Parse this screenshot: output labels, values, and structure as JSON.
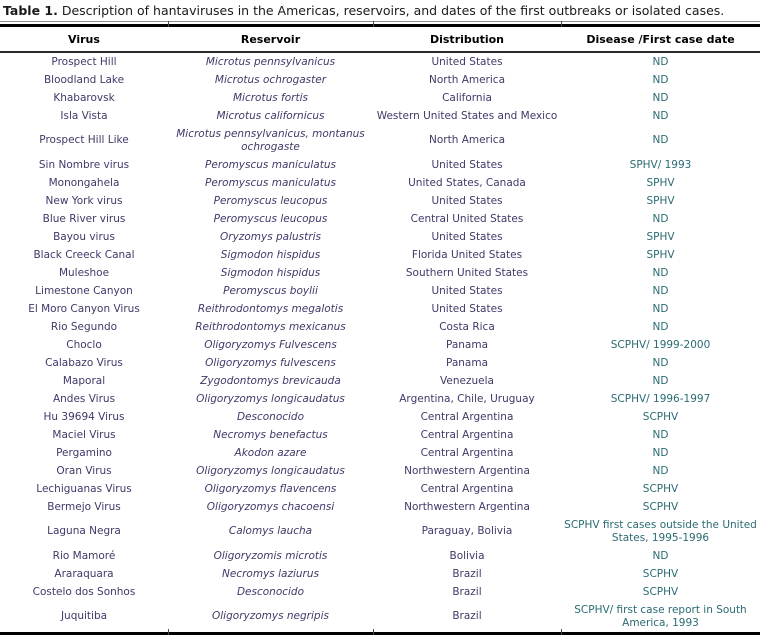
{
  "caption": {
    "label": "Table 1.",
    "text": " Description of hantaviruses in the Americas, reservoirs, and dates of the first outbreaks or isolated cases."
  },
  "table": {
    "columns": [
      "Virus",
      "Reservoir",
      "Distribution",
      "Disease /First case date"
    ],
    "rows": [
      {
        "virus": "Prospect Hill",
        "reservoir": "Microtus pennsylvanicus",
        "distribution": "United States",
        "disease": "ND"
      },
      {
        "virus": "Bloodland Lake",
        "reservoir": "Microtus ochrogaster",
        "distribution": "North America",
        "disease": "ND"
      },
      {
        "virus": "Khabarovsk",
        "reservoir": "Microtus fortis",
        "distribution": "California",
        "disease": "ND"
      },
      {
        "virus": "Isla Vista",
        "reservoir": "Microtus californicus",
        "distribution": "Western United States and Mexico",
        "disease": "ND"
      },
      {
        "virus": "Prospect Hill Like",
        "reservoir": "Microtus pennsylvanicus, montanus ochrogaste",
        "distribution": "North America",
        "disease": "ND"
      },
      {
        "virus": "Sin Nombre virus",
        "reservoir": "Peromyscus maniculatus",
        "distribution": "United States",
        "disease": "SPHV/ 1993"
      },
      {
        "virus": "Monongahela",
        "reservoir": "Peromyscus maniculatus",
        "distribution": "United States, Canada",
        "disease": "SPHV"
      },
      {
        "virus": "New York virus",
        "reservoir": "Peromyscus leucopus",
        "distribution": "United States",
        "disease": "SPHV"
      },
      {
        "virus": "Blue River virus",
        "reservoir": "Peromyscus leucopus",
        "distribution": "Central United States",
        "disease": "ND"
      },
      {
        "virus": "Bayou virus",
        "reservoir": "Oryzomys palustris",
        "distribution": "United States",
        "disease": "SPHV"
      },
      {
        "virus": "Black Creeck Canal",
        "reservoir": "Sigmodon hispidus",
        "distribution": "Florida United States",
        "disease": "SPHV"
      },
      {
        "virus": "Muleshoe",
        "reservoir": "Sigmodon hispidus",
        "distribution": "Southern United States",
        "disease": "ND"
      },
      {
        "virus": "Limestone Canyon",
        "reservoir": "Peromyscus boylii",
        "distribution": "United States",
        "disease": "ND"
      },
      {
        "virus": "El Moro Canyon Virus",
        "reservoir": "Reithrodontomys megalotis",
        "distribution": "United States",
        "disease": "ND"
      },
      {
        "virus": "Rio Segundo",
        "reservoir": "Reithrodontomys mexicanus",
        "distribution": "Costa Rica",
        "disease": "ND"
      },
      {
        "virus": "Choclo",
        "reservoir": "Oligoryzomys Fulvescens",
        "distribution": "Panama",
        "disease": "SCPHV/ 1999-2000"
      },
      {
        "virus": "Calabazo Virus",
        "reservoir": "Oligoryzomys fulvescens",
        "distribution": "Panama",
        "disease": "ND"
      },
      {
        "virus": "Maporal",
        "reservoir": "Zygodontomys brevicauda",
        "distribution": "Venezuela",
        "disease": "ND"
      },
      {
        "virus": "Andes Virus",
        "reservoir": "Oligoryzomys longicaudatus",
        "distribution": "Argentina, Chile, Uruguay",
        "disease": "SCPHV/ 1996-1997"
      },
      {
        "virus": "Hu 39694 Virus",
        "reservoir": "Desconocido",
        "distribution": "Central Argentina",
        "disease": "SCPHV"
      },
      {
        "virus": "Maciel Virus",
        "reservoir": "Necromys benefactus",
        "distribution": "Central Argentina",
        "disease": "ND"
      },
      {
        "virus": "Pergamino",
        "reservoir": "Akodon azare",
        "distribution": "Central Argentina",
        "disease": "ND"
      },
      {
        "virus": "Oran Virus",
        "reservoir": "Oligoryzomys longicaudatus",
        "distribution": "Northwestern Argentina",
        "disease": "ND"
      },
      {
        "virus": "Lechiguanas Virus",
        "reservoir": "Oligoryzomys flavencens",
        "distribution": "Central Argentina",
        "disease": "SCPHV"
      },
      {
        "virus": "Bermejo Virus",
        "reservoir": "Oligoryzomys chacoensi",
        "distribution": "Northwestern Argentina",
        "disease": "SCPHV"
      },
      {
        "virus": "Laguna Negra",
        "reservoir": "Calomys laucha",
        "distribution": "Paraguay, Bolivia",
        "disease": "SCPHV first cases outside the United States, 1995-1996"
      },
      {
        "virus": "Rio Mamoré",
        "reservoir": "Oligoryzomis microtis",
        "distribution": "Bolivia",
        "disease": "ND"
      },
      {
        "virus": "Araraquara",
        "reservoir": "Necromys laziurus",
        "distribution": "Brazil",
        "disease": "SCPHV"
      },
      {
        "virus": "Costelo dos Sonhos",
        "reservoir": "Desconocido",
        "distribution": "Brazil",
        "disease": "SCPHV"
      },
      {
        "virus": "Juquitiba",
        "reservoir": "Oligoryzomys negripis",
        "distribution": "Brazil",
        "disease": "SCPHV/ first case report in South America, 1993"
      }
    ]
  },
  "colors": {
    "title_text": "#1a1a1a",
    "header_text": "#000000",
    "virus_text": "#3e3a68",
    "reservoir_text": "#3e3a68",
    "distribution_text": "#3e3a68",
    "disease_text": "#2a6b72",
    "rule_dark": "#000000",
    "rule_light": "#8f8f85"
  }
}
